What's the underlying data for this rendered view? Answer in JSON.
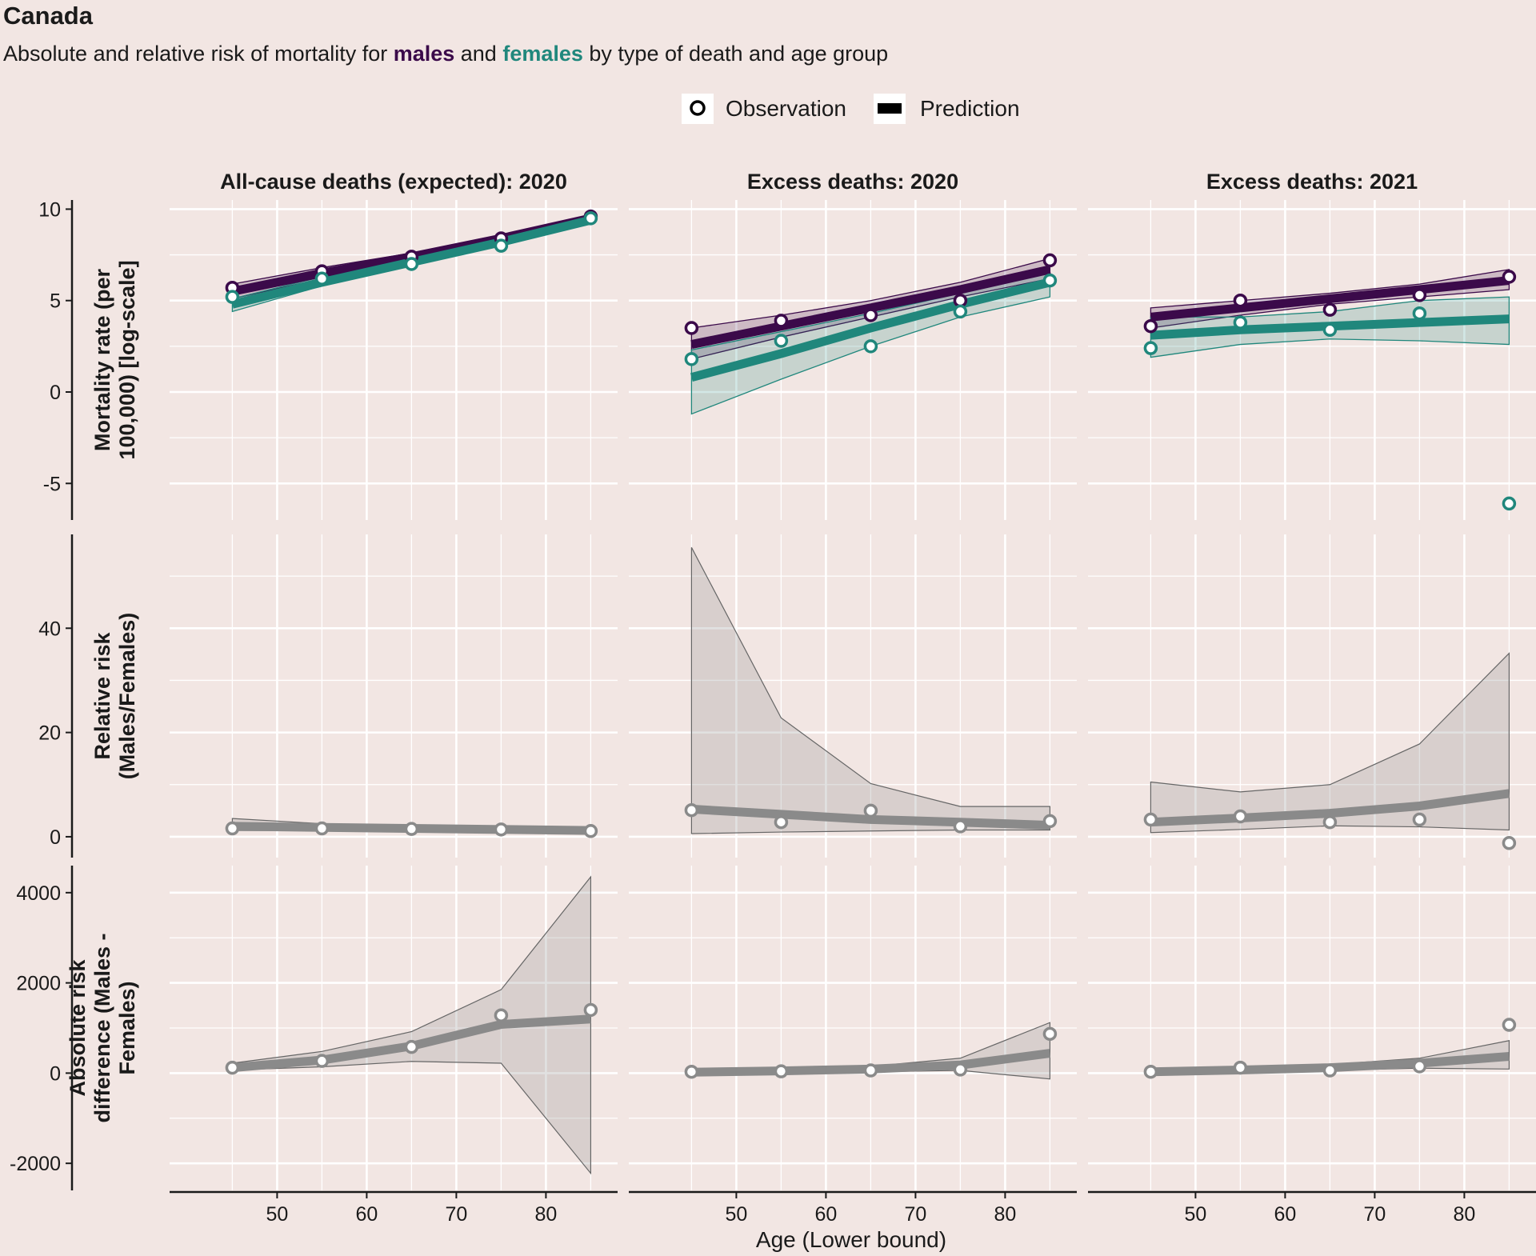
{
  "title": "Canada",
  "subtitle": {
    "prefix": "Absolute and relative risk of mortality for ",
    "males": "males",
    "middle": " and ",
    "females": "females",
    "suffix": " by type of death and age group"
  },
  "legend": {
    "observation_label": "Observation",
    "prediction_label": "Prediction",
    "placement": "top-center"
  },
  "colors": {
    "background": "#f2e6e3",
    "males": "#3b0a4a",
    "females": "#20877c",
    "risk": "#8a8a8a",
    "grid": "#ffffff"
  },
  "chart_data": {
    "type": "line",
    "xlabel": "Age (Lower bound)",
    "x_ticks": [
      50,
      60,
      70,
      80
    ],
    "xlim": [
      38,
      88
    ],
    "grid": true,
    "column_titles": [
      "All-cause deaths (expected): 2020",
      "Excess deaths: 2020",
      "Excess deaths: 2021"
    ],
    "rows": [
      {
        "key": "mortality",
        "ylabel_lines": [
          "Mortality rate (per",
          "100,000) [log-scale]"
        ],
        "ylim": [
          -7,
          10.5
        ],
        "y_ticks": [
          -5,
          0,
          5,
          10
        ],
        "y_tick_labels": [
          "-5",
          "0",
          "5",
          "10"
        ],
        "panels": [
          {
            "x": [
              45,
              55,
              65,
              75,
              85
            ],
            "series": [
              {
                "name": "males",
                "obs": [
                  5.7,
                  6.6,
                  7.4,
                  8.4,
                  9.6
                ],
                "pred": [
                  5.5,
                  6.5,
                  7.4,
                  8.4,
                  9.5
                ],
                "lo": [
                  5.1,
                  6.2,
                  7.2,
                  8.2,
                  9.3
                ],
                "hi": [
                  5.9,
                  6.8,
                  7.6,
                  8.6,
                  9.7
                ]
              },
              {
                "name": "females",
                "obs": [
                  5.2,
                  6.2,
                  7.0,
                  8.0,
                  9.5
                ],
                "pred": [
                  4.8,
                  6.0,
                  7.1,
                  8.2,
                  9.4
                ],
                "lo": [
                  4.4,
                  5.8,
                  6.9,
                  8.0,
                  9.2
                ],
                "hi": [
                  5.1,
                  6.3,
                  7.3,
                  8.4,
                  9.6
                ]
              }
            ]
          },
          {
            "x": [
              45,
              55,
              65,
              75,
              85
            ],
            "series": [
              {
                "name": "males",
                "obs": [
                  3.5,
                  3.9,
                  4.2,
                  5.0,
                  7.2
                ],
                "pred": [
                  2.6,
                  3.6,
                  4.6,
                  5.6,
                  6.7
                ],
                "lo": [
                  1.8,
                  3.0,
                  4.1,
                  5.2,
                  6.2
                ],
                "hi": [
                  3.5,
                  4.2,
                  5.0,
                  6.0,
                  7.3
                ]
              },
              {
                "name": "females",
                "obs": [
                  1.8,
                  2.8,
                  2.5,
                  4.4,
                  6.1
                ],
                "pred": [
                  0.8,
                  2.1,
                  3.5,
                  4.8,
                  6.0
                ],
                "lo": [
                  -1.2,
                  0.7,
                  2.5,
                  4.1,
                  5.2
                ],
                "hi": [
                  2.3,
                  3.3,
                  4.3,
                  5.4,
                  6.5
                ]
              }
            ]
          },
          {
            "x": [
              45,
              55,
              65,
              75,
              85
            ],
            "series": [
              {
                "name": "males",
                "obs": [
                  3.6,
                  5.0,
                  4.5,
                  5.3,
                  6.3
                ],
                "pred": [
                  4.1,
                  4.6,
                  5.1,
                  5.6,
                  6.1
                ],
                "lo": [
                  3.5,
                  4.2,
                  4.8,
                  5.2,
                  5.6
                ],
                "hi": [
                  4.6,
                  5.0,
                  5.4,
                  5.9,
                  6.7
                ]
              },
              {
                "name": "females",
                "obs": [
                  2.4,
                  3.8,
                  3.4,
                  4.3,
                  -6.1
                ],
                "pred": [
                  3.1,
                  3.4,
                  3.6,
                  3.8,
                  4.0
                ],
                "lo": [
                  1.9,
                  2.6,
                  2.9,
                  2.8,
                  2.6
                ],
                "hi": [
                  4.1,
                  4.1,
                  4.4,
                  5.0,
                  5.2
                ]
              }
            ]
          }
        ]
      },
      {
        "key": "relative_risk",
        "ylabel_lines": [
          "Relative risk",
          "(Males/Females)"
        ],
        "ylim": [
          -4,
          58
        ],
        "y_ticks": [
          0,
          20,
          40
        ],
        "y_tick_labels": [
          "0",
          "20",
          "40"
        ],
        "panels": [
          {
            "x": [
              45,
              55,
              65,
              75,
              85
            ],
            "obs": [
              1.6,
              1.6,
              1.5,
              1.4,
              1.1
            ],
            "pred": [
              2.0,
              1.8,
              1.6,
              1.4,
              1.2
            ],
            "lo": [
              1.2,
              1.2,
              1.1,
              1.0,
              0.9
            ],
            "hi": [
              3.5,
              2.5,
              2.1,
              1.8,
              1.6
            ]
          },
          {
            "x": [
              45,
              55,
              65,
              75,
              85
            ],
            "obs": [
              5.1,
              2.8,
              5.0,
              2.0,
              3.0
            ],
            "pred": [
              5.3,
              4.3,
              3.3,
              2.8,
              2.2
            ],
            "lo": [
              0.6,
              0.9,
              1.1,
              1.3,
              1.3
            ],
            "hi": [
              55.5,
              22.8,
              10.2,
              5.8,
              5.8
            ]
          },
          {
            "x": [
              45,
              55,
              65,
              75,
              85
            ],
            "obs": [
              3.3,
              3.9,
              2.8,
              3.3,
              -1.2
            ],
            "pred": [
              2.8,
              3.6,
              4.5,
              5.9,
              8.3
            ],
            "lo": [
              0.8,
              1.4,
              2.1,
              1.9,
              1.3
            ],
            "hi": [
              10.5,
              8.6,
              10.0,
              17.8,
              35.2
            ]
          }
        ]
      },
      {
        "key": "absolute_risk",
        "ylabel_lines": [
          "Absolute risk",
          "difference (Males -",
          "Females)"
        ],
        "ylim": [
          -2600,
          4600
        ],
        "y_ticks": [
          -2000,
          0,
          2000,
          4000
        ],
        "y_tick_labels": [
          "-2000",
          "0",
          "2000",
          "4000"
        ],
        "panels": [
          {
            "x": [
              45,
              55,
              65,
              75,
              85
            ],
            "obs": [
              120,
              270,
              580,
              1280,
              1400
            ],
            "pred": [
              120,
              290,
              600,
              1080,
              1200
            ],
            "lo": [
              70,
              140,
              260,
              220,
              -2220
            ],
            "hi": [
              220,
              480,
              920,
              1850,
              4350
            ]
          },
          {
            "x": [
              45,
              55,
              65,
              75,
              85
            ],
            "obs": [
              30,
              40,
              60,
              80,
              870
            ],
            "pred": [
              20,
              50,
              90,
              180,
              440
            ],
            "lo": [
              0,
              10,
              30,
              60,
              -130
            ],
            "hi": [
              40,
              90,
              150,
              330,
              1120
            ]
          },
          {
            "x": [
              45,
              55,
              65,
              75,
              85
            ],
            "obs": [
              30,
              120,
              60,
              150,
              1070
            ],
            "pred": [
              30,
              70,
              120,
              220,
              370
            ],
            "lo": [
              10,
              30,
              60,
              110,
              90
            ],
            "hi": [
              60,
              120,
              190,
              330,
              720
            ]
          }
        ]
      }
    ]
  }
}
